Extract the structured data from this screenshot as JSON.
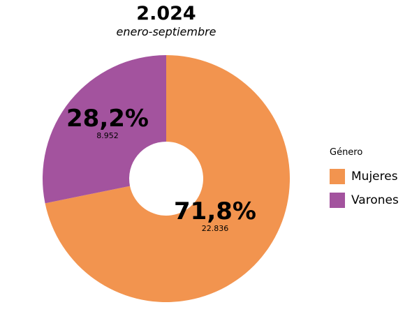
{
  "chart_data": {
    "type": "pie",
    "title": "2.024",
    "subtitle": "enero-septiembre",
    "legend_title": "Género",
    "legend_position": "right",
    "series": [
      {
        "name": "Mujeres",
        "percent": 71.8,
        "percent_label": "71,8%",
        "count": 22836,
        "count_label": "22.836",
        "color": "#f2944f"
      },
      {
        "name": "Varones",
        "percent": 28.2,
        "percent_label": "28,2%",
        "count": 8952,
        "count_label": "8.952",
        "color": "#a3539e"
      }
    ]
  }
}
